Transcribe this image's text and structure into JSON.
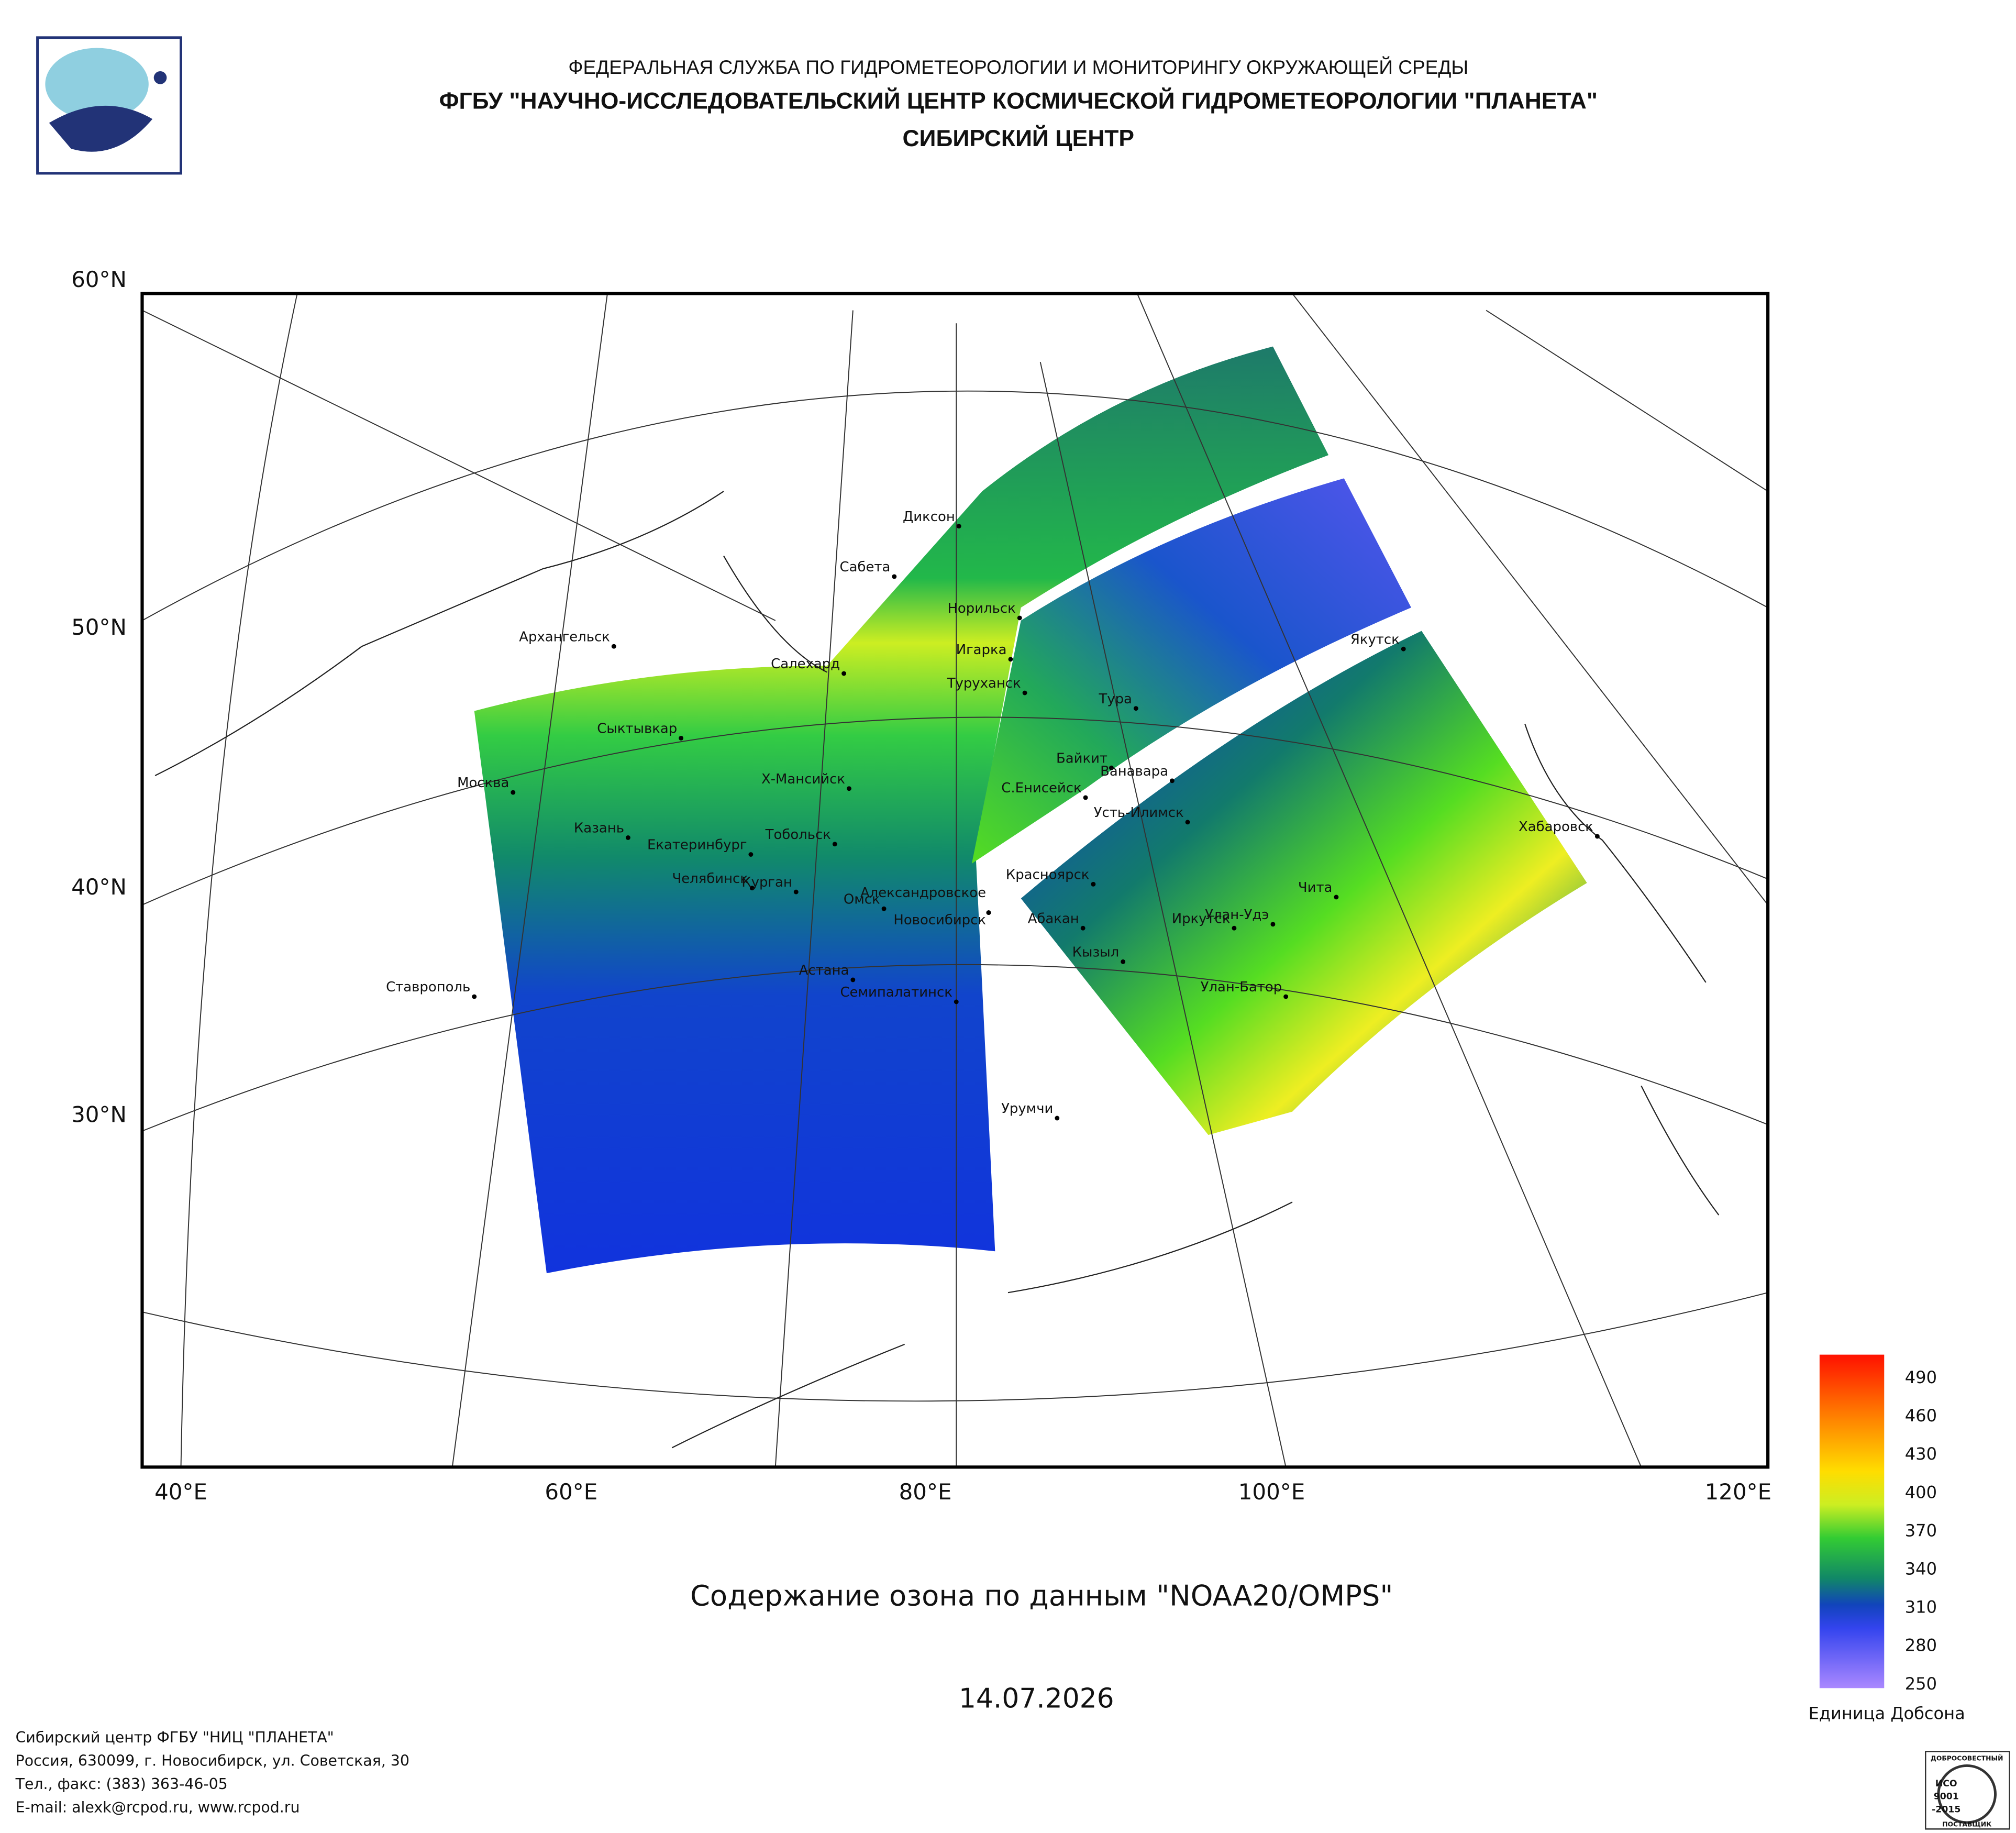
{
  "header": {
    "agency": "ФЕДЕРАЛЬНАЯ СЛУЖБА ПО ГИДРОМЕТЕОРОЛОГИИ И МОНИТОРИНГУ ОКРУЖАЮЩЕЙ СРЕДЫ",
    "institute": "ФГБУ \"НАУЧНО-ИССЛЕДОВАТЕЛЬСКИЙ ЦЕНТР КОСМИЧЕСКОЙ ГИДРОМЕТЕОРОЛОГИИ \"ПЛАНЕТА\"",
    "center": "СИБИРСКИЙ ЦЕНТР"
  },
  "map": {
    "lat_labels": [
      "60°N",
      "50°N",
      "40°N",
      "30°N"
    ],
    "lon_labels": [
      "40°E",
      "60°E",
      "80°E",
      "100°E",
      "120°E"
    ],
    "cities": [
      "Диксон",
      "Сабета",
      "Норильск",
      "Игарка",
      "Салехард",
      "Архангельск",
      "Туруханск",
      "Тура",
      "Сыктывкар",
      "Байкит",
      "Ванавара",
      "Москва",
      "Х-Мансийск",
      "С.Енисейск",
      "Усть-Илимск",
      "Хабаровск",
      "Казань",
      "Тобольск",
      "Екатеринбург",
      "Чита",
      "Красноярск",
      "Челябинск",
      "Курган",
      "Александровское",
      "Омск",
      "Новосибирск",
      "Улан-Удэ",
      "Абакан",
      "Иркутск",
      "Кызыл",
      "Астана",
      "Улан-Батор",
      "Семипалатинск",
      "Ставрополь",
      "Урумчи",
      "Якутск"
    ]
  },
  "colorbar": {
    "ticks": [
      490,
      460,
      430,
      400,
      370,
      340,
      310,
      280,
      250
    ],
    "unit": "Единица Добсона"
  },
  "title": "Содержание озона по данным \"NOAA20/OMPS\"",
  "date": "14.07.2026",
  "footer": [
    "Сибирский центр ФГБУ \"НИЦ \"ПЛАНЕТА\"",
    "Россия, 630099, г. Новосибирск, ул. Советская, 30",
    "Тел., факс: (383) 363-46-05",
    "E-mail: alexk@rcpod.ru, www.rcpod.ru"
  ],
  "badge": [
    "ДОБРОСОВЕСТНЫЙ",
    "ИСО",
    "9001",
    "-2015",
    "ПОСТАВЩИК"
  ]
}
